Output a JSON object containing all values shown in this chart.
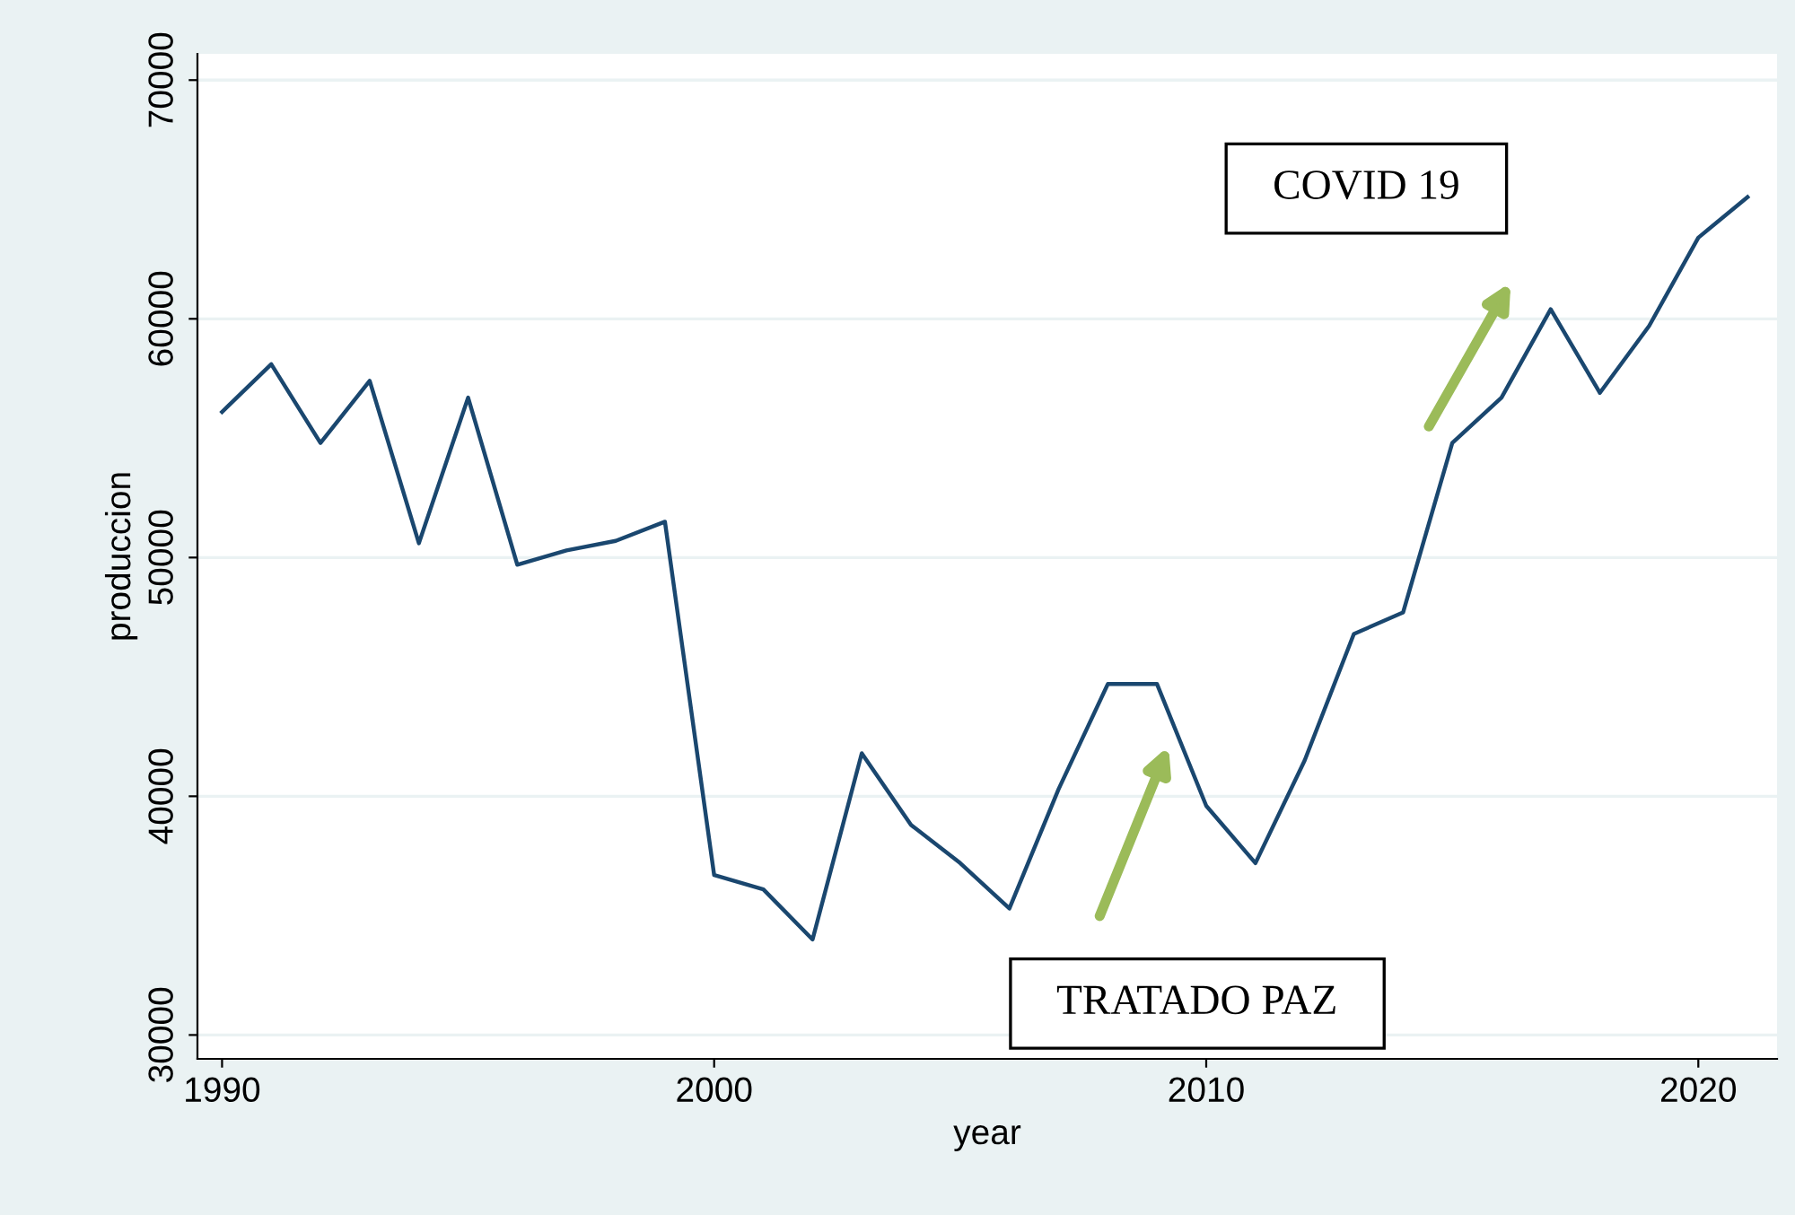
{
  "chart_data": {
    "type": "line",
    "xlabel": "year",
    "ylabel": "produccion",
    "x": [
      1990,
      1991,
      1992,
      1993,
      1994,
      1995,
      1996,
      1997,
      1998,
      1999,
      2000,
      2001,
      2002,
      2003,
      2004,
      2005,
      2006,
      2007,
      2008,
      2009,
      2010,
      2011,
      2012,
      2013,
      2014,
      2015,
      2016,
      2017,
      2018,
      2019,
      2020,
      2021
    ],
    "series": [
      {
        "color": "#1a476f",
        "values": [
          56100,
          58100,
          54800,
          57400,
          50600,
          56700,
          49700,
          50300,
          50700,
          51500,
          36700,
          36100,
          34000,
          41800,
          38800,
          37200,
          35300,
          40300,
          44700,
          44700,
          39600,
          37200,
          41500,
          46800,
          47700,
          54800,
          56700,
          60400,
          56900,
          59700,
          63400,
          65100
        ]
      }
    ],
    "xlim": [
      1989.5,
      2021.6
    ],
    "ylim": [
      29000,
      71100
    ],
    "xticks": [
      1990,
      2000,
      2010,
      2020
    ],
    "yticks": [
      30000,
      40000,
      50000,
      60000,
      70000
    ],
    "grid": "y",
    "marker": "none",
    "line_style": "solid",
    "annotations": [
      "COVID 19",
      "TRATADO PAZ"
    ]
  }
}
